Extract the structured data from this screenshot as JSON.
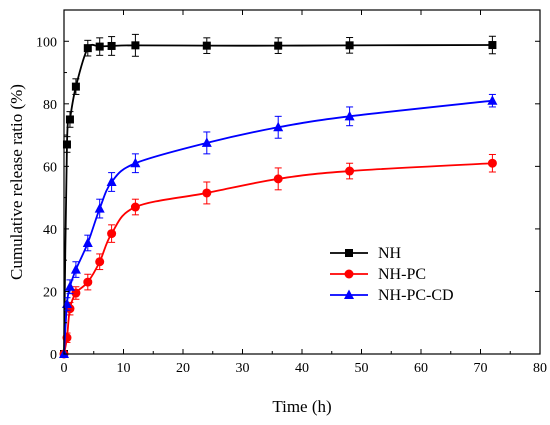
{
  "chart_data": {
    "type": "line",
    "xlabel": "Time (h)",
    "ylabel": "Cumulative release ratio (%)",
    "xlim": [
      0,
      80
    ],
    "ylim": [
      0,
      110
    ],
    "xticks": [
      0,
      10,
      20,
      30,
      40,
      50,
      60,
      70,
      80
    ],
    "yticks": [
      0,
      20,
      40,
      60,
      80,
      100
    ],
    "grid": false,
    "legend_position": "lower-right",
    "series": [
      {
        "name": "NH",
        "color": "#000000",
        "marker": "square",
        "x": [
          0,
          0.5,
          1,
          2,
          4,
          6,
          8,
          12,
          24,
          36,
          48,
          72
        ],
        "y": [
          0,
          67,
          75,
          85.5,
          97.8,
          98.3,
          98.5,
          98.7,
          98.6,
          98.6,
          98.7,
          98.8
        ],
        "error": [
          0,
          2.5,
          2.5,
          2.5,
          2.5,
          2.8,
          3,
          3.5,
          2.5,
          2.5,
          2.5,
          2.8
        ]
      },
      {
        "name": "NH-PC",
        "color": "#ff0000",
        "marker": "circle",
        "x": [
          0,
          0.5,
          1,
          2,
          4,
          6,
          8,
          12,
          24,
          36,
          48,
          72
        ],
        "y": [
          0,
          5.2,
          14.5,
          19.5,
          23,
          29.5,
          38.5,
          47,
          51.5,
          56,
          58.5,
          61
        ],
        "error": [
          0,
          1.5,
          2,
          2,
          2.5,
          2.5,
          2.8,
          2.5,
          3.5,
          3.5,
          2.5,
          2.8
        ]
      },
      {
        "name": "NH-PC-CD",
        "color": "#0000ff",
        "marker": "triangle",
        "x": [
          0,
          0.5,
          1,
          2,
          4,
          6,
          8,
          12,
          24,
          36,
          48,
          72
        ],
        "y": [
          0,
          16,
          21.5,
          27,
          35.5,
          46.5,
          55,
          61,
          67.5,
          72.5,
          76,
          81
        ],
        "error": [
          0,
          2,
          2.2,
          2.5,
          2.5,
          3,
          3,
          3,
          3.5,
          3.5,
          3,
          2
        ]
      }
    ]
  }
}
